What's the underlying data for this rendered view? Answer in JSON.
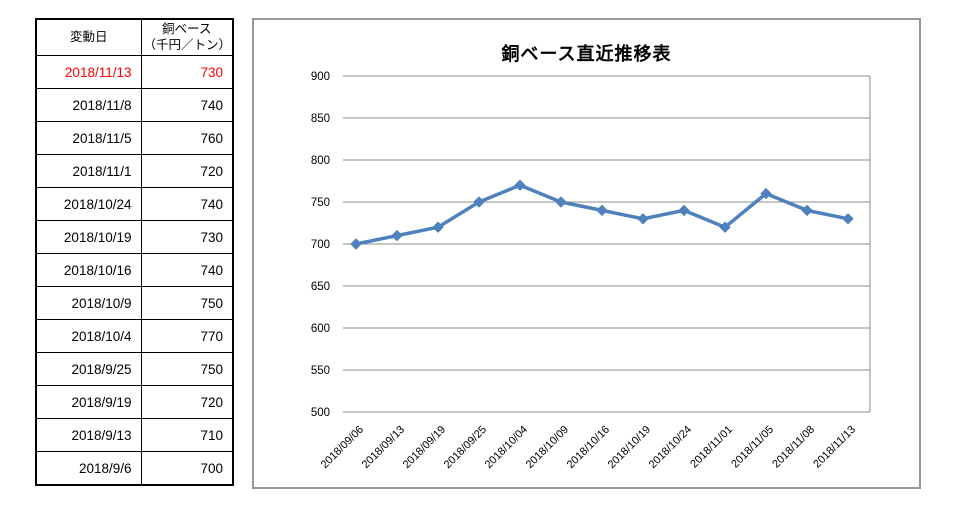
{
  "table": {
    "header_date": "変動日",
    "header_price_line1": "銅ベース",
    "header_price_line2": "（千円／トン）",
    "highlight_color": "#FF0000",
    "rows": [
      {
        "date": "2018/11/13",
        "value": "730",
        "highlight": true
      },
      {
        "date": "2018/11/8",
        "value": "740",
        "highlight": false
      },
      {
        "date": "2018/11/5",
        "value": "760",
        "highlight": false
      },
      {
        "date": "2018/11/1",
        "value": "720",
        "highlight": false
      },
      {
        "date": "2018/10/24",
        "value": "740",
        "highlight": false
      },
      {
        "date": "2018/10/19",
        "value": "730",
        "highlight": false
      },
      {
        "date": "2018/10/16",
        "value": "740",
        "highlight": false
      },
      {
        "date": "2018/10/9",
        "value": "750",
        "highlight": false
      },
      {
        "date": "2018/10/4",
        "value": "770",
        "highlight": false
      },
      {
        "date": "2018/9/25",
        "value": "750",
        "highlight": false
      },
      {
        "date": "2018/9/19",
        "value": "720",
        "highlight": false
      },
      {
        "date": "2018/9/13",
        "value": "710",
        "highlight": false
      },
      {
        "date": "2018/9/6",
        "value": "700",
        "highlight": false
      }
    ]
  },
  "chart_data": {
    "type": "line",
    "title": "銅ベース直近推移表",
    "x": [
      "2018/09/06",
      "2018/09/13",
      "2018/09/19",
      "2018/09/25",
      "2018/10/04",
      "2018/10/09",
      "2018/10/16",
      "2018/10/19",
      "2018/10/24",
      "2018/11/01",
      "2018/11/05",
      "2018/11/08",
      "2018/11/13"
    ],
    "series": [
      {
        "name": "銅ベース（千円／トン）",
        "values": [
          700,
          710,
          720,
          750,
          770,
          750,
          740,
          730,
          740,
          720,
          760,
          740,
          730
        ],
        "color": "#4F81BD"
      }
    ],
    "xlabel": "",
    "ylabel": "",
    "ylim": [
      500,
      900
    ],
    "ytick_step": 50,
    "grid": true,
    "grid_color": "#8e8e8e",
    "legend": "none",
    "marker": "diamond",
    "x_label_rotation": 45
  }
}
